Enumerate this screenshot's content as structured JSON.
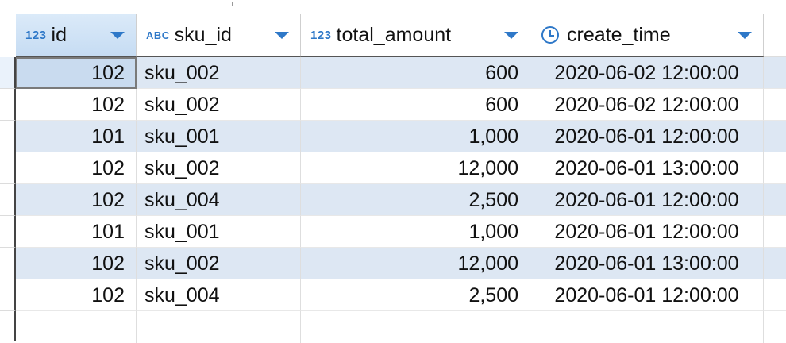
{
  "columns": [
    {
      "key": "id",
      "type_badge": "123",
      "label": "id"
    },
    {
      "key": "sku_id",
      "type_badge": "ABC",
      "label": "sku_id"
    },
    {
      "key": "total_amount",
      "type_badge": "123",
      "label": "total_amount"
    },
    {
      "key": "create_time",
      "type_badge": "clock-icon",
      "label": "create_time"
    }
  ],
  "rows": [
    {
      "id": "102",
      "sku_id": "sku_002",
      "total_amount": "600",
      "create_time": "2020-06-02 12:00:00"
    },
    {
      "id": "102",
      "sku_id": "sku_002",
      "total_amount": "600",
      "create_time": "2020-06-02 12:00:00"
    },
    {
      "id": "101",
      "sku_id": "sku_001",
      "total_amount": "1,000",
      "create_time": "2020-06-01 12:00:00"
    },
    {
      "id": "102",
      "sku_id": "sku_002",
      "total_amount": "12,000",
      "create_time": "2020-06-01 13:00:00"
    },
    {
      "id": "102",
      "sku_id": "sku_004",
      "total_amount": "2,500",
      "create_time": "2020-06-01 12:00:00"
    },
    {
      "id": "101",
      "sku_id": "sku_001",
      "total_amount": "1,000",
      "create_time": "2020-06-01 12:00:00"
    },
    {
      "id": "102",
      "sku_id": "sku_002",
      "total_amount": "12,000",
      "create_time": "2020-06-01 13:00:00"
    },
    {
      "id": "102",
      "sku_id": "sku_004",
      "total_amount": "2,500",
      "create_time": "2020-06-01 12:00:00"
    }
  ],
  "colors": {
    "accent": "#2e78c8",
    "row_alt": "#dde7f3",
    "selected_cell": "#c9dbef",
    "header_active": "#c6dcf3"
  }
}
